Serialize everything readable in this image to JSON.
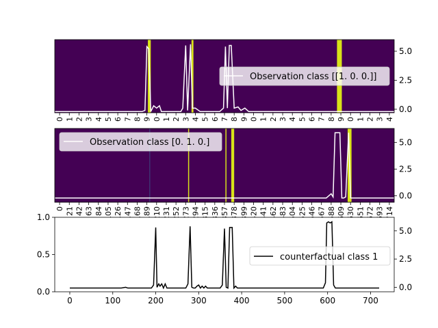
{
  "chart_data": [
    {
      "type": "heatmap",
      "legend": "Observation class [[1. 0. 0.]]",
      "legend_position": "right",
      "line_color": "#ffffff",
      "background_color": "#440154",
      "highlight_color": "#d8e219",
      "xlim": [
        0,
        35
      ],
      "ylim": [
        -0.3,
        6.0
      ],
      "y_ticks": [
        0.0,
        2.5,
        5.0
      ],
      "y_tick_labels": [
        "0.0",
        "2.5",
        "5.0"
      ],
      "x_tick_labels": [
        "0",
        "1",
        "2",
        "3",
        "4",
        "5",
        "6",
        "7",
        "8",
        "9",
        "0",
        "1",
        "2",
        "3",
        "4",
        "5",
        "6",
        "7",
        "8",
        "9",
        "0",
        "1",
        "2",
        "3",
        "4",
        "5",
        "6",
        "7",
        "8",
        "9",
        "0",
        "1",
        "2",
        "3",
        "4"
      ],
      "highlights": [
        [
          9.6,
          9.9
        ],
        [
          14.1,
          14.3
        ],
        [
          29.1,
          29.6
        ]
      ],
      "line": {
        "x": [
          0,
          9.0,
          9.3,
          9.5,
          9.7,
          9.9,
          10.2,
          10.5,
          10.8,
          11.0,
          11.5,
          13.0,
          13.2,
          13.5,
          13.7,
          14.0,
          14.2,
          14.5,
          15.0,
          17.0,
          17.4,
          17.6,
          17.8,
          18.0,
          18.2,
          18.5,
          18.9,
          19.2,
          19.6,
          20.0,
          21.0,
          35.0
        ],
        "y": [
          -0.2,
          -0.2,
          -0.1,
          5.4,
          5.2,
          -0.2,
          0.3,
          0.1,
          0.3,
          -0.2,
          -0.2,
          -0.2,
          0.1,
          5.5,
          -0.1,
          5.6,
          0.1,
          0.1,
          -0.2,
          -0.2,
          0.1,
          5.4,
          0.1,
          5.5,
          5.5,
          0.1,
          0.2,
          -0.1,
          0.1,
          -0.2,
          -0.2,
          -0.2
        ]
      }
    },
    {
      "type": "heatmap",
      "legend": "Observation class [0. 1. 0.]",
      "legend_position": "top-left",
      "line_color": "#ffffff",
      "background_color": "#440154",
      "highlight_color": "#d8e219",
      "xlim": [
        0,
        35
      ],
      "ylim": [
        -0.6,
        6.3
      ],
      "y_ticks": [
        0.0,
        2.5,
        5.0
      ],
      "y_tick_labels": [
        "0.0",
        "2.5",
        "5.0"
      ],
      "highlights": [
        [
          13.75,
          13.85
        ],
        [
          17.6,
          17.7
        ],
        [
          18.2,
          18.5
        ],
        [
          30.2,
          30.6
        ]
      ],
      "thin_line_at": 9.8,
      "line": {
        "x": [
          0,
          28.0,
          28.5,
          28.7,
          28.9,
          29.2,
          29.4,
          29.6,
          29.8,
          30.0,
          30.3,
          30.5,
          35.0
        ],
        "y": [
          -0.2,
          -0.2,
          0.2,
          -0.1,
          5.9,
          5.9,
          5.9,
          -0.2,
          -0.2,
          -0.1,
          5.9,
          -0.2,
          -0.2
        ]
      },
      "x_ticks": [
        0,
        21,
        42,
        63,
        84,
        105,
        126,
        147,
        168,
        189,
        210,
        231,
        252,
        273,
        294,
        315,
        336,
        357,
        378,
        399,
        420,
        441,
        462,
        483,
        504,
        525,
        546,
        567,
        588,
        609,
        630,
        651,
        672,
        693,
        714
      ],
      "x_tick_labels": [
        "0",
        "21",
        "42",
        "63",
        "84",
        "105",
        "126",
        "147",
        "168",
        "189",
        "210",
        "231",
        "252",
        "273",
        "294",
        "315",
        "336",
        "357",
        "378",
        "399",
        "420",
        "441",
        "462",
        "483",
        "504",
        "525",
        "546",
        "567",
        "588",
        "609",
        "630",
        "651",
        "672",
        "693",
        "714"
      ]
    },
    {
      "type": "line",
      "legend": "counterfactual class 1",
      "legend_position": "right",
      "line_color": "#000000",
      "xlim": [
        -35,
        755
      ],
      "x_ticks": [
        0,
        100,
        200,
        300,
        400,
        500,
        600,
        700
      ],
      "x_tick_labels": [
        "0",
        "100",
        "200",
        "300",
        "400",
        "500",
        "600",
        "700"
      ],
      "left_ylim": [
        0,
        1
      ],
      "left_y_ticks": [
        0.0,
        0.5,
        1.0
      ],
      "left_y_tick_labels": [
        "0.0",
        "0.5",
        "1.0"
      ],
      "right_ylim": [
        -0.4,
        6.2
      ],
      "right_y_ticks": [
        0.0,
        2.5,
        5.0
      ],
      "right_y_tick_labels": [
        "0.0",
        "2.5",
        "5.0"
      ],
      "line": {
        "x": [
          0,
          120,
          130,
          135,
          140,
          190,
          195,
          200,
          203,
          207,
          210,
          214,
          218,
          222,
          226,
          230,
          270,
          275,
          280,
          284,
          288,
          292,
          296,
          300,
          304,
          308,
          312,
          316,
          320,
          350,
          355,
          360,
          364,
          368,
          372,
          375,
          378,
          382,
          386,
          390,
          395,
          400,
          500,
          590,
          595,
          598,
          602,
          606,
          610,
          614,
          618,
          720
        ],
        "y": [
          -0.07,
          -0.07,
          0.0,
          -0.07,
          -0.07,
          -0.07,
          0.2,
          5.3,
          0.0,
          0.3,
          0.1,
          0.3,
          -0.07,
          0.3,
          -0.07,
          -0.07,
          -0.07,
          0.3,
          5.4,
          0.0,
          -0.07,
          -0.07,
          0.1,
          0.2,
          -0.07,
          0.1,
          -0.07,
          0.1,
          -0.07,
          -0.07,
          0.2,
          5.2,
          0.0,
          -0.07,
          5.3,
          5.3,
          5.3,
          -0.07,
          0.1,
          -0.07,
          -0.07,
          -0.07,
          -0.07,
          -0.07,
          0.4,
          5.7,
          5.8,
          5.7,
          5.8,
          0.2,
          -0.07,
          -0.07
        ]
      }
    }
  ]
}
